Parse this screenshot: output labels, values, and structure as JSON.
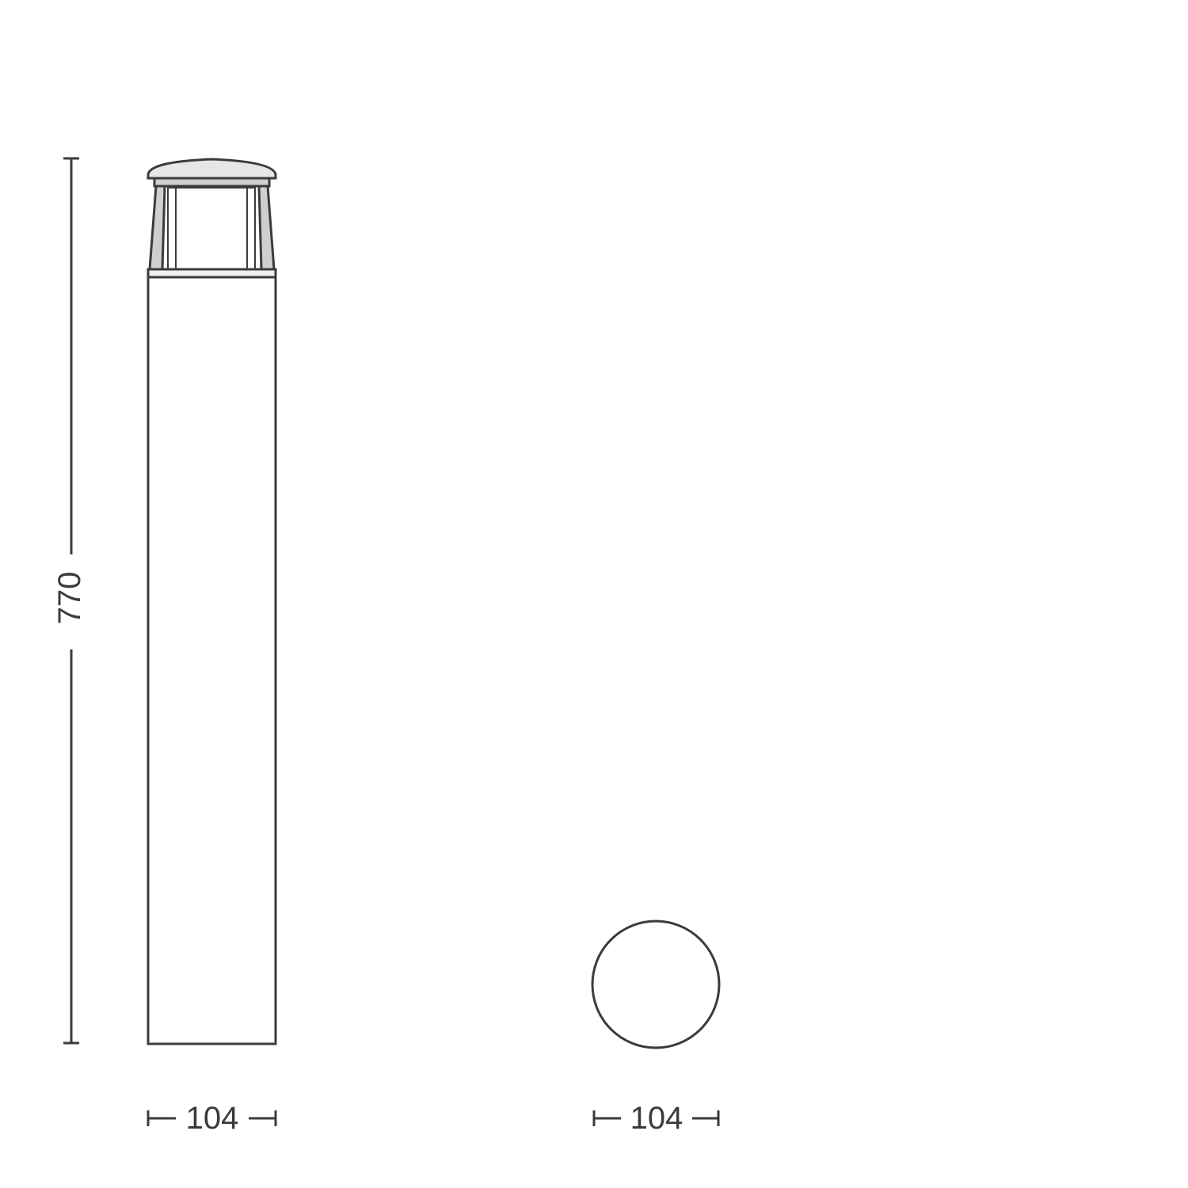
{
  "drawing": {
    "line_color": "#3b3b3b",
    "background": "#ffffff",
    "front_view": {
      "height_label": "770",
      "width_label": "104"
    },
    "top_view": {
      "diameter_label": "104"
    }
  }
}
